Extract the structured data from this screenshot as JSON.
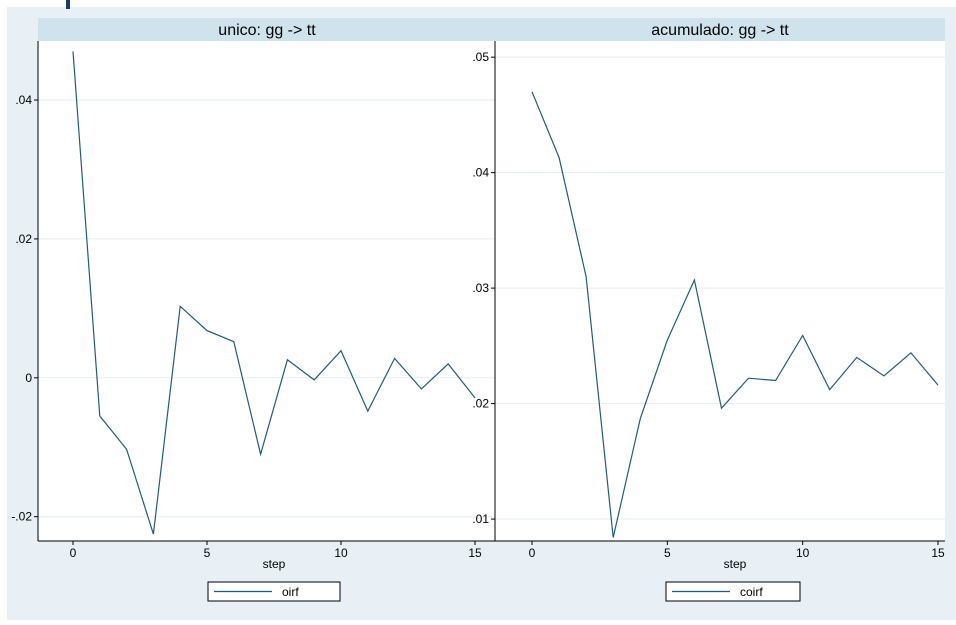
{
  "style": {
    "outer_background": "#e8f0f5",
    "header_background": "#cfe3ec",
    "plot_background": "#ffffff",
    "gridline_color": "#e6eef2",
    "line_color": "#1f5d77",
    "text_color": "#000000"
  },
  "chart_data": [
    {
      "type": "line",
      "title": "unico: gg -> tt",
      "xlabel": "step",
      "ylabel": "",
      "x": [
        0,
        1,
        2,
        3,
        4,
        5,
        6,
        7,
        8,
        9,
        10,
        11,
        12,
        13,
        14,
        15
      ],
      "series": [
        {
          "name": "oirf",
          "values": [
            0.047,
            -0.0055,
            -0.0103,
            -0.0225,
            0.0103,
            0.0068,
            0.0052,
            -0.011,
            0.0026,
            -0.0003,
            0.0039,
            -0.0048,
            0.0028,
            -0.0016,
            0.002,
            -0.0029
          ]
        }
      ],
      "xlim": [
        0,
        15
      ],
      "ylim": [
        -0.0235,
        0.0485
      ],
      "xticks": [
        0,
        5,
        10,
        15
      ],
      "xtick_labels": [
        "0",
        "5",
        "10",
        "15"
      ],
      "yticks": [
        -0.02,
        0,
        0.02,
        0.04
      ],
      "ytick_labels": [
        "-.02",
        "0",
        ".02",
        ".04"
      ],
      "grid": true,
      "legend": "bottom-center"
    },
    {
      "type": "line",
      "title": "acumulado: gg -> tt",
      "xlabel": "step",
      "ylabel": "",
      "x": [
        0,
        1,
        2,
        3,
        4,
        5,
        6,
        7,
        8,
        9,
        10,
        11,
        12,
        13,
        14,
        15
      ],
      "series": [
        {
          "name": "coirf",
          "values": [
            0.047,
            0.0413,
            0.031,
            0.0084,
            0.0187,
            0.0255,
            0.0307,
            0.0196,
            0.0222,
            0.022,
            0.0259,
            0.0212,
            0.024,
            0.0224,
            0.0244,
            0.0216
          ]
        }
      ],
      "xlim": [
        0,
        15
      ],
      "ylim": [
        0.0081,
        0.0514
      ],
      "xticks": [
        0,
        5,
        10,
        15
      ],
      "xtick_labels": [
        "0",
        "5",
        "10",
        "15"
      ],
      "yticks": [
        0.01,
        0.02,
        0.03,
        0.04,
        0.05
      ],
      "ytick_labels": [
        ".01",
        ".02",
        ".03",
        ".04",
        ".05"
      ],
      "grid": true,
      "legend": "bottom-center"
    }
  ]
}
